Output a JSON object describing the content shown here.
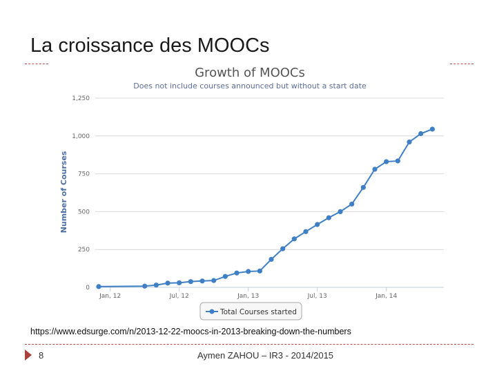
{
  "slide": {
    "title": "La croissance des MOOCs",
    "source": "https://www.edsurge.com/n/2013-12-22-moocs-in-2013-breaking-down-the-numbers",
    "page_number": "8",
    "footer": "Aymen ZAHOU – IR3 - 2014/2015",
    "accent_color": "#a9423a"
  },
  "chart_data": {
    "type": "line",
    "title": "Growth of MOOCs",
    "subtitle": "Does not include courses announced but without a start date",
    "xlabel": "",
    "ylabel": "Number of Courses",
    "ylim": [
      0,
      1250
    ],
    "yticks": [
      0,
      250,
      500,
      750,
      1000,
      1250
    ],
    "ytick_labels": [
      "0",
      "250",
      "500",
      "750",
      "1,000",
      "1,250"
    ],
    "xticks": [
      {
        "label": "Jan, 12",
        "month": 0
      },
      {
        "label": "Jul, 12",
        "month": 6
      },
      {
        "label": "Jan, 13",
        "month": 12
      },
      {
        "label": "Jul, 13",
        "month": 18
      },
      {
        "label": "Jan, 14",
        "month": 24
      }
    ],
    "xlim_months": [
      -1.3,
      29
    ],
    "grid": true,
    "legend": "bottom-center",
    "series": [
      {
        "name": "Total Courses started",
        "color": "#3f7fc6",
        "x_months": [
          -1,
          3,
          4,
          5,
          6,
          7,
          8,
          9,
          10,
          11,
          12,
          13,
          14,
          15,
          16,
          17,
          18,
          19,
          20,
          21,
          22,
          23,
          24,
          25,
          26,
          27,
          28
        ],
        "values": [
          5,
          8,
          15,
          28,
          30,
          38,
          42,
          45,
          72,
          95,
          105,
          108,
          185,
          255,
          320,
          368,
          415,
          460,
          500,
          550,
          660,
          780,
          830,
          835,
          960,
          1015,
          1045
        ]
      }
    ]
  }
}
